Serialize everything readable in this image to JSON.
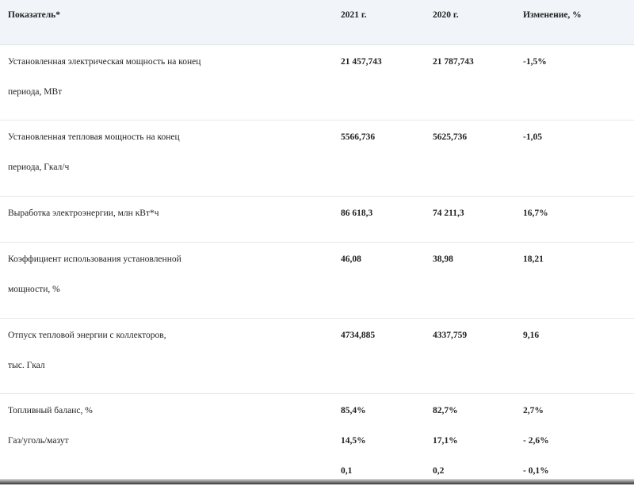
{
  "header": {
    "indicator": "Показатель*",
    "year_2021": "2021 г.",
    "year_2020": "2020 г.",
    "change": "Изменение, %"
  },
  "rows": [
    {
      "label": [
        "Установленная электрическая мощность на конец",
        "периода, МВт"
      ],
      "v2021": "21 457,743",
      "v2020": "21 787,743",
      "change": "-1,5%"
    },
    {
      "label": [
        "Установленная тепловая мощность на конец",
        "периода, Гкал/ч"
      ],
      "v2021": "5566,736",
      "v2020": "5625,736",
      "change": "-1,05"
    },
    {
      "label": [
        "Выработка электроэнергии, млн кВт*ч"
      ],
      "v2021": "86 618,3",
      "v2020": "74 211,3",
      "change": "16,7%"
    },
    {
      "label": [
        "Коэффициент использования установленной",
        "мощности, %"
      ],
      "v2021": "46,08",
      "v2020": "38,98",
      "change": "18,21"
    },
    {
      "label": [
        "Отпуск тепловой энергии с коллекторов,",
        "тыс. Гкал"
      ],
      "v2021": "4734,885",
      "v2020": "4337,759",
      "change": "9,16"
    },
    {
      "label": [
        "Топливный баланс, %",
        "Газ/уголь/мазут",
        ""
      ],
      "v2021": [
        "85,4%",
        "14,5%",
        "0,1"
      ],
      "v2020": [
        "82,7%",
        "17,1%",
        "0,2"
      ],
      "change": [
        "2,7%",
        "- 2,6%",
        "- 0,1%"
      ]
    }
  ]
}
